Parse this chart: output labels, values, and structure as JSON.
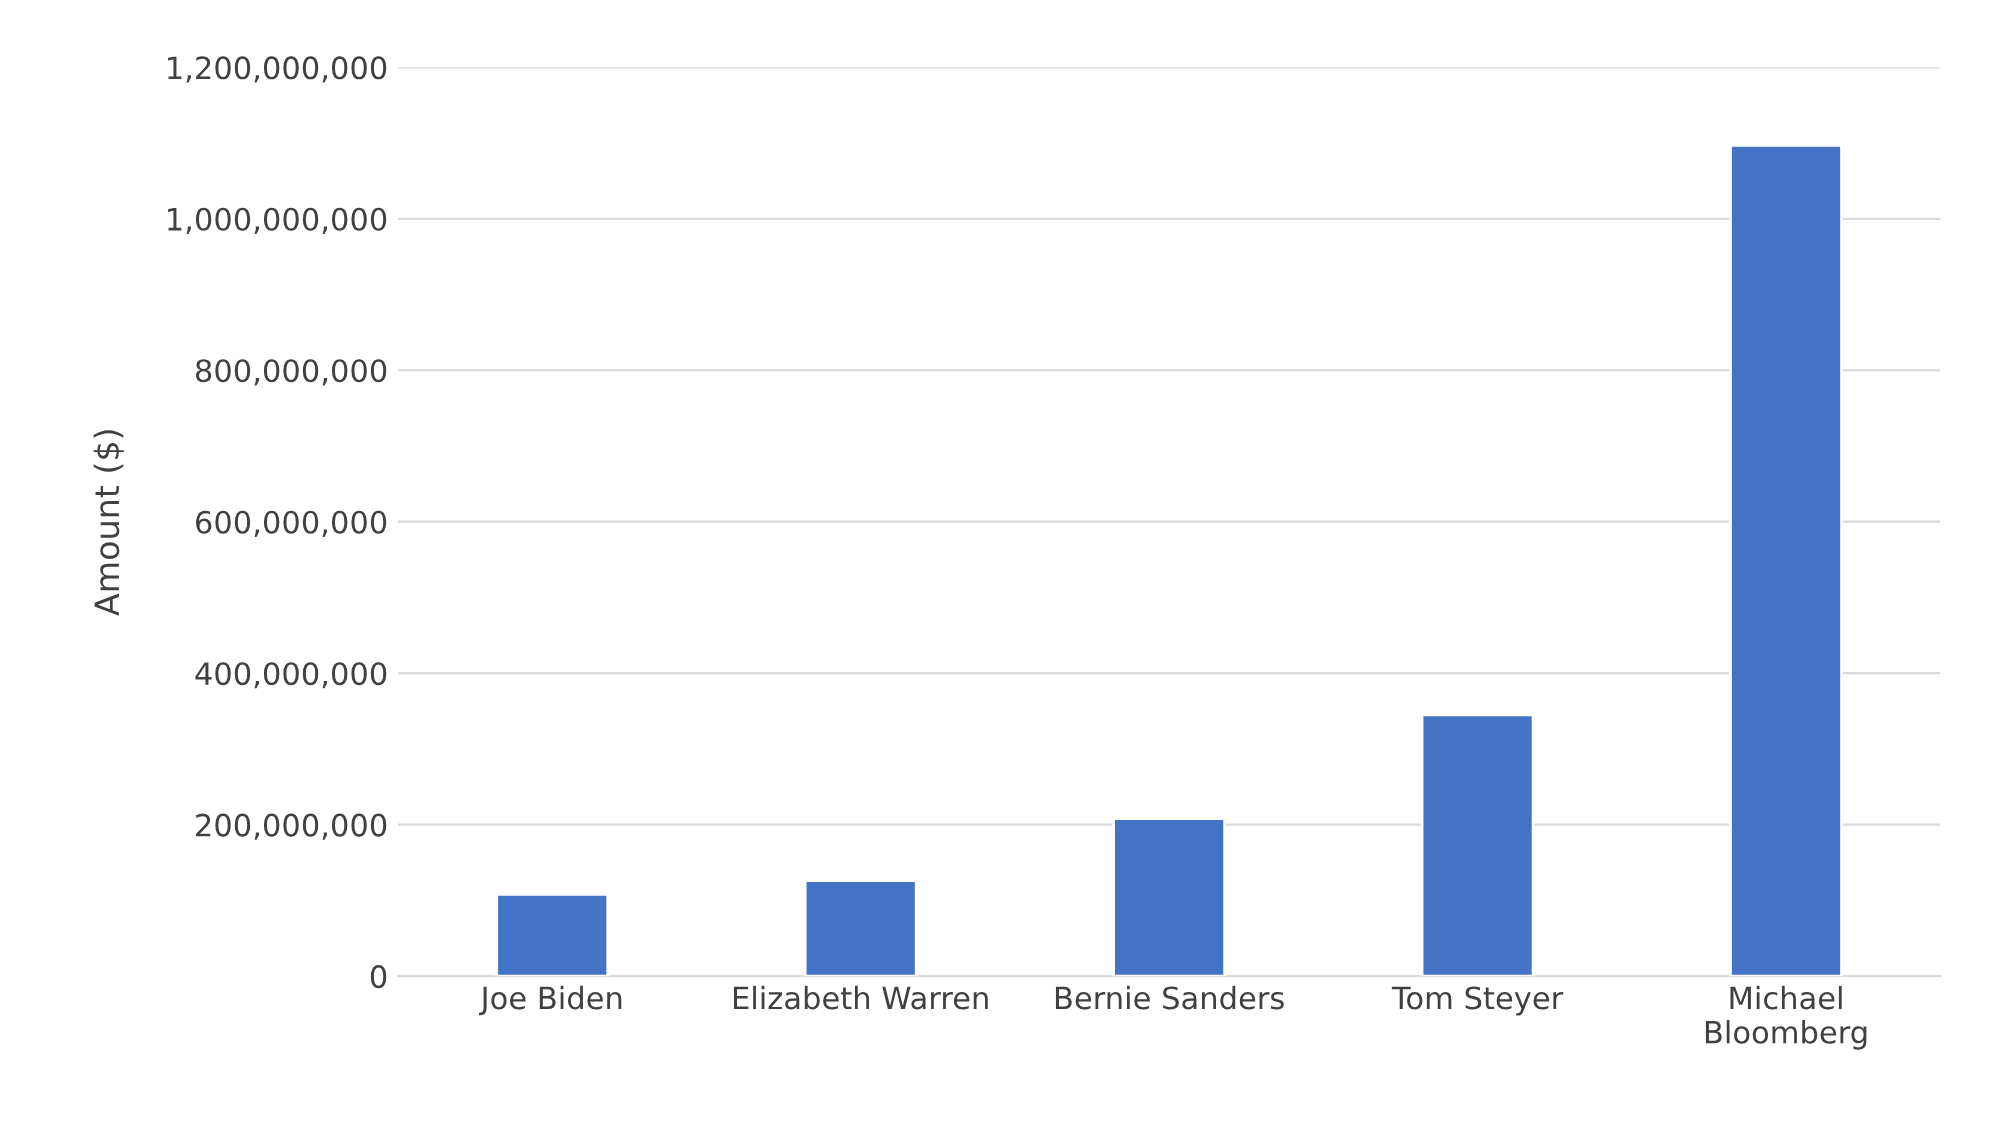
{
  "chart_data": {
    "type": "bar",
    "ylabel": "Amount ($)",
    "categories": [
      "Joe Biden",
      "Elizabeth Warren",
      "Bernie Sanders",
      "Tom Steyer",
      "Michael\nBloomberg"
    ],
    "values": [
      108000000,
      126000000,
      208000000,
      345000000,
      1097000000
    ],
    "color": "#4472c4",
    "ylim": [
      0,
      1200000000
    ],
    "yticks": [
      0,
      {
        "value": 200000000,
        "label": "200,000,000"
      },
      {
        "value": 400000000,
        "label": "400,000,000"
      },
      {
        "value": 600000000,
        "label": "600,000,000"
      },
      {
        "value": 800000000,
        "label": "800,000,000"
      },
      {
        "value": 1000000000,
        "label": "1,000,000,000"
      },
      {
        "value": 1200000000,
        "label": "1,200,000,000"
      }
    ],
    "grid": "y",
    "legend": false
  }
}
